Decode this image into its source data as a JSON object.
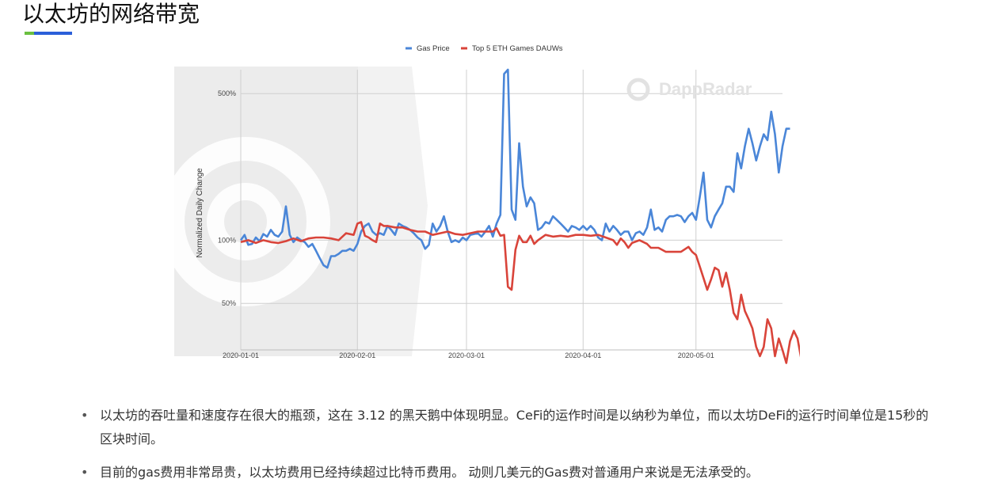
{
  "page": {
    "title": "以太坊的网络带宽"
  },
  "colors": {
    "gas": "#4a86d8",
    "games": "#d9443a",
    "title_accent_green": "#6abf40",
    "title_accent_blue": "#2b5fd9"
  },
  "chart_data": {
    "type": "line",
    "title": "",
    "xlabel": "",
    "ylabel": "Normalized Daily Change",
    "y_scale": "log",
    "ylim": [
      0.3,
      6.5
    ],
    "y_ticks": [
      {
        "value": 0.5,
        "label": "50%"
      },
      {
        "value": 1.0,
        "label": "100%"
      },
      {
        "value": 5.0,
        "label": "500%"
      }
    ],
    "x_ticks": [
      {
        "value": "2020-01-01",
        "label": "2020-01-01"
      },
      {
        "value": "2020-02-01",
        "label": "2020-02-01"
      },
      {
        "value": "2020-03-01",
        "label": "2020-03-01"
      },
      {
        "value": "2020-04-01",
        "label": "2020-04-01"
      },
      {
        "value": "2020-05-01",
        "label": "2020-05-01"
      }
    ],
    "xlim": [
      "2020-01-01",
      "2020-05-24"
    ],
    "legend_position": "top-center",
    "grid": true,
    "watermark": "DappRadar",
    "series": [
      {
        "name": "Gas Price",
        "color": "#4a86d8",
        "points": [
          [
            "2020-01-01",
            1.0
          ],
          [
            "2020-01-02",
            1.06
          ],
          [
            "2020-01-03",
            0.95
          ],
          [
            "2020-01-04",
            0.96
          ],
          [
            "2020-01-05",
            1.03
          ],
          [
            "2020-01-06",
            0.99
          ],
          [
            "2020-01-07",
            1.07
          ],
          [
            "2020-01-08",
            1.04
          ],
          [
            "2020-01-09",
            1.12
          ],
          [
            "2020-01-10",
            1.06
          ],
          [
            "2020-01-11",
            1.04
          ],
          [
            "2020-01-12",
            1.1
          ],
          [
            "2020-01-13",
            1.45
          ],
          [
            "2020-01-14",
            1.06
          ],
          [
            "2020-01-15",
            0.98
          ],
          [
            "2020-01-16",
            1.03
          ],
          [
            "2020-01-17",
            1.0
          ],
          [
            "2020-01-18",
            0.98
          ],
          [
            "2020-01-19",
            0.93
          ],
          [
            "2020-01-20",
            0.96
          ],
          [
            "2020-01-21",
            0.89
          ],
          [
            "2020-01-22",
            0.82
          ],
          [
            "2020-01-23",
            0.76
          ],
          [
            "2020-01-24",
            0.74
          ],
          [
            "2020-01-25",
            0.84
          ],
          [
            "2020-01-26",
            0.84
          ],
          [
            "2020-01-27",
            0.86
          ],
          [
            "2020-01-28",
            0.89
          ],
          [
            "2020-01-29",
            0.89
          ],
          [
            "2020-01-30",
            0.91
          ],
          [
            "2020-01-31",
            0.89
          ],
          [
            "2020-02-01",
            0.96
          ],
          [
            "2020-02-02",
            1.1
          ],
          [
            "2020-02-03",
            1.17
          ],
          [
            "2020-02-04",
            1.2
          ],
          [
            "2020-02-05",
            1.1
          ],
          [
            "2020-02-06",
            1.06
          ],
          [
            "2020-02-07",
            1.08
          ],
          [
            "2020-02-08",
            1.06
          ],
          [
            "2020-02-09",
            1.17
          ],
          [
            "2020-02-10",
            1.12
          ],
          [
            "2020-02-11",
            1.06
          ],
          [
            "2020-02-12",
            1.2
          ],
          [
            "2020-02-13",
            1.17
          ],
          [
            "2020-02-14",
            1.15
          ],
          [
            "2020-02-15",
            1.12
          ],
          [
            "2020-02-16",
            1.08
          ],
          [
            "2020-02-17",
            1.03
          ],
          [
            "2020-02-18",
            1.0
          ],
          [
            "2020-02-19",
            0.91
          ],
          [
            "2020-02-20",
            0.95
          ],
          [
            "2020-02-21",
            1.2
          ],
          [
            "2020-02-22",
            1.1
          ],
          [
            "2020-02-23",
            1.17
          ],
          [
            "2020-02-24",
            1.3
          ],
          [
            "2020-02-25",
            1.1
          ],
          [
            "2020-02-26",
            0.98
          ],
          [
            "2020-02-27",
            1.0
          ],
          [
            "2020-02-28",
            0.98
          ],
          [
            "2020-02-29",
            1.03
          ],
          [
            "2020-03-01",
            1.0
          ],
          [
            "2020-03-02",
            1.06
          ],
          [
            "2020-03-03",
            1.07
          ],
          [
            "2020-03-04",
            1.08
          ],
          [
            "2020-03-05",
            1.04
          ],
          [
            "2020-03-06",
            1.1
          ],
          [
            "2020-03-07",
            1.17
          ],
          [
            "2020-03-08",
            1.04
          ],
          [
            "2020-03-09",
            1.2
          ],
          [
            "2020-03-10",
            1.32
          ],
          [
            "2020-03-11",
            6.2
          ],
          [
            "2020-03-12",
            6.5
          ],
          [
            "2020-03-13",
            1.4
          ],
          [
            "2020-03-14",
            1.25
          ],
          [
            "2020-03-15",
            2.9
          ],
          [
            "2020-03-16",
            1.8
          ],
          [
            "2020-03-17",
            1.45
          ],
          [
            "2020-03-18",
            1.6
          ],
          [
            "2020-03-19",
            1.5
          ],
          [
            "2020-03-20",
            1.12
          ],
          [
            "2020-03-21",
            1.15
          ],
          [
            "2020-03-22",
            1.22
          ],
          [
            "2020-03-23",
            1.2
          ],
          [
            "2020-03-24",
            1.3
          ],
          [
            "2020-03-25",
            1.25
          ],
          [
            "2020-03-26",
            1.2
          ],
          [
            "2020-03-27",
            1.15
          ],
          [
            "2020-03-28",
            1.1
          ],
          [
            "2020-03-29",
            1.17
          ],
          [
            "2020-03-30",
            1.15
          ],
          [
            "2020-03-31",
            1.12
          ],
          [
            "2020-04-01",
            1.17
          ],
          [
            "2020-04-02",
            1.12
          ],
          [
            "2020-04-03",
            1.17
          ],
          [
            "2020-04-04",
            1.12
          ],
          [
            "2020-04-05",
            1.03
          ],
          [
            "2020-04-06",
            1.0
          ],
          [
            "2020-04-07",
            1.2
          ],
          [
            "2020-04-08",
            1.1
          ],
          [
            "2020-04-09",
            1.17
          ],
          [
            "2020-04-10",
            1.12
          ],
          [
            "2020-04-11",
            1.06
          ],
          [
            "2020-04-12",
            1.1
          ],
          [
            "2020-04-13",
            1.1
          ],
          [
            "2020-04-14",
            1.0
          ],
          [
            "2020-04-15",
            1.08
          ],
          [
            "2020-04-16",
            1.1
          ],
          [
            "2020-04-17",
            1.06
          ],
          [
            "2020-04-18",
            1.15
          ],
          [
            "2020-04-19",
            1.4
          ],
          [
            "2020-04-20",
            1.12
          ],
          [
            "2020-04-21",
            1.15
          ],
          [
            "2020-04-22",
            1.1
          ],
          [
            "2020-04-23",
            1.25
          ],
          [
            "2020-04-24",
            1.3
          ],
          [
            "2020-04-25",
            1.3
          ],
          [
            "2020-04-26",
            1.32
          ],
          [
            "2020-04-27",
            1.3
          ],
          [
            "2020-04-28",
            1.22
          ],
          [
            "2020-04-29",
            1.3
          ],
          [
            "2020-04-30",
            1.35
          ],
          [
            "2020-05-01",
            1.25
          ],
          [
            "2020-05-02",
            1.6
          ],
          [
            "2020-05-03",
            2.1
          ],
          [
            "2020-05-04",
            1.25
          ],
          [
            "2020-05-05",
            1.15
          ],
          [
            "2020-05-06",
            1.3
          ],
          [
            "2020-05-07",
            1.4
          ],
          [
            "2020-05-08",
            1.5
          ],
          [
            "2020-05-09",
            1.8
          ],
          [
            "2020-05-10",
            1.8
          ],
          [
            "2020-05-11",
            1.7
          ],
          [
            "2020-05-12",
            2.6
          ],
          [
            "2020-05-13",
            2.2
          ],
          [
            "2020-05-14",
            2.8
          ],
          [
            "2020-05-15",
            3.4
          ],
          [
            "2020-05-16",
            2.9
          ],
          [
            "2020-05-17",
            2.4
          ],
          [
            "2020-05-18",
            2.8
          ],
          [
            "2020-05-19",
            3.2
          ],
          [
            "2020-05-20",
            3.0
          ],
          [
            "2020-05-21",
            4.1
          ],
          [
            "2020-05-22",
            3.2
          ],
          [
            "2020-05-23",
            2.1
          ],
          [
            "2020-05-24",
            2.8
          ],
          [
            "2020-05-25",
            3.4
          ],
          [
            "2020-05-26",
            3.4
          ]
        ]
      },
      {
        "name": "Top 5 ETH Games DAUWs",
        "color": "#d9443a",
        "points": [
          [
            "2020-01-01",
            0.98
          ],
          [
            "2020-01-03",
            1.0
          ],
          [
            "2020-01-05",
            0.97
          ],
          [
            "2020-01-07",
            1.0
          ],
          [
            "2020-01-09",
            0.98
          ],
          [
            "2020-01-11",
            0.97
          ],
          [
            "2020-01-13",
            0.99
          ],
          [
            "2020-01-15",
            1.02
          ],
          [
            "2020-01-17",
            0.99
          ],
          [
            "2020-01-19",
            1.02
          ],
          [
            "2020-01-21",
            1.03
          ],
          [
            "2020-01-23",
            1.03
          ],
          [
            "2020-01-25",
            1.02
          ],
          [
            "2020-01-27",
            1.0
          ],
          [
            "2020-01-29",
            1.08
          ],
          [
            "2020-01-31",
            1.06
          ],
          [
            "2020-02-01",
            1.2
          ],
          [
            "2020-02-02",
            1.22
          ],
          [
            "2020-02-03",
            1.05
          ],
          [
            "2020-02-04",
            1.03
          ],
          [
            "2020-02-05",
            1.0
          ],
          [
            "2020-02-06",
            0.98
          ],
          [
            "2020-02-07",
            1.2
          ],
          [
            "2020-02-08",
            1.17
          ],
          [
            "2020-02-09",
            1.17
          ],
          [
            "2020-02-11",
            1.15
          ],
          [
            "2020-02-13",
            1.15
          ],
          [
            "2020-02-15",
            1.12
          ],
          [
            "2020-02-17",
            1.1
          ],
          [
            "2020-02-19",
            1.1
          ],
          [
            "2020-02-21",
            1.06
          ],
          [
            "2020-02-23",
            1.08
          ],
          [
            "2020-02-25",
            1.1
          ],
          [
            "2020-02-27",
            1.07
          ],
          [
            "2020-02-29",
            1.06
          ],
          [
            "2020-03-02",
            1.08
          ],
          [
            "2020-03-04",
            1.1
          ],
          [
            "2020-03-06",
            1.1
          ],
          [
            "2020-03-08",
            1.1
          ],
          [
            "2020-03-09",
            1.14
          ],
          [
            "2020-03-10",
            1.05
          ],
          [
            "2020-03-11",
            1.06
          ],
          [
            "2020-03-12",
            0.6
          ],
          [
            "2020-03-13",
            0.58
          ],
          [
            "2020-03-14",
            0.9
          ],
          [
            "2020-03-15",
            1.05
          ],
          [
            "2020-03-16",
            0.98
          ],
          [
            "2020-03-17",
            0.98
          ],
          [
            "2020-03-18",
            1.05
          ],
          [
            "2020-03-19",
            0.96
          ],
          [
            "2020-03-20",
            1.0
          ],
          [
            "2020-03-22",
            1.06
          ],
          [
            "2020-03-24",
            1.04
          ],
          [
            "2020-03-26",
            1.05
          ],
          [
            "2020-03-28",
            1.04
          ],
          [
            "2020-03-30",
            1.06
          ],
          [
            "2020-04-01",
            1.06
          ],
          [
            "2020-04-03",
            1.05
          ],
          [
            "2020-04-05",
            1.06
          ],
          [
            "2020-04-07",
            1.03
          ],
          [
            "2020-04-09",
            1.0
          ],
          [
            "2020-04-10",
            0.95
          ],
          [
            "2020-04-11",
            1.02
          ],
          [
            "2020-04-12",
            0.98
          ],
          [
            "2020-04-13",
            0.92
          ],
          [
            "2020-04-14",
            0.97
          ],
          [
            "2020-04-16",
            1.0
          ],
          [
            "2020-04-18",
            0.96
          ],
          [
            "2020-04-19",
            0.92
          ],
          [
            "2020-04-21",
            0.92
          ],
          [
            "2020-04-23",
            0.88
          ],
          [
            "2020-04-25",
            0.88
          ],
          [
            "2020-04-27",
            0.88
          ],
          [
            "2020-04-29",
            0.93
          ],
          [
            "2020-04-30",
            0.88
          ],
          [
            "2020-05-01",
            0.85
          ],
          [
            "2020-05-02",
            0.75
          ],
          [
            "2020-05-03",
            0.66
          ],
          [
            "2020-05-04",
            0.58
          ],
          [
            "2020-05-05",
            0.65
          ],
          [
            "2020-05-06",
            0.74
          ],
          [
            "2020-05-07",
            0.72
          ],
          [
            "2020-05-08",
            0.6
          ],
          [
            "2020-05-09",
            0.7
          ],
          [
            "2020-05-10",
            0.58
          ],
          [
            "2020-05-11",
            0.45
          ],
          [
            "2020-05-12",
            0.42
          ],
          [
            "2020-05-13",
            0.55
          ],
          [
            "2020-05-14",
            0.46
          ],
          [
            "2020-05-15",
            0.42
          ],
          [
            "2020-05-16",
            0.38
          ],
          [
            "2020-05-17",
            0.31
          ],
          [
            "2020-05-18",
            0.28
          ],
          [
            "2020-05-19",
            0.31
          ],
          [
            "2020-05-20",
            0.42
          ],
          [
            "2020-05-21",
            0.38
          ],
          [
            "2020-05-22",
            0.28
          ],
          [
            "2020-05-23",
            0.34
          ],
          [
            "2020-05-24",
            0.3
          ],
          [
            "2020-05-25",
            0.26
          ],
          [
            "2020-05-26",
            0.33
          ],
          [
            "2020-05-27",
            0.37
          ],
          [
            "2020-05-28",
            0.34
          ],
          [
            "2020-05-29",
            0.27
          ]
        ]
      }
    ]
  },
  "bullets": [
    {
      "text": "以太坊的吞吐量和速度存在很大的瓶颈，这在 3.12 的黑天鹅中体现明显。CeFi的运作时间是以纳秒为单位，而以太坊DeFi的运行时间单位是15秒的区块时间。"
    },
    {
      "text": "目前的gas费用非常昂贵，以太坊费用已经持续超过比特币费用。 动则几美元的Gas费对普通用户来说是无法承受的。"
    }
  ]
}
